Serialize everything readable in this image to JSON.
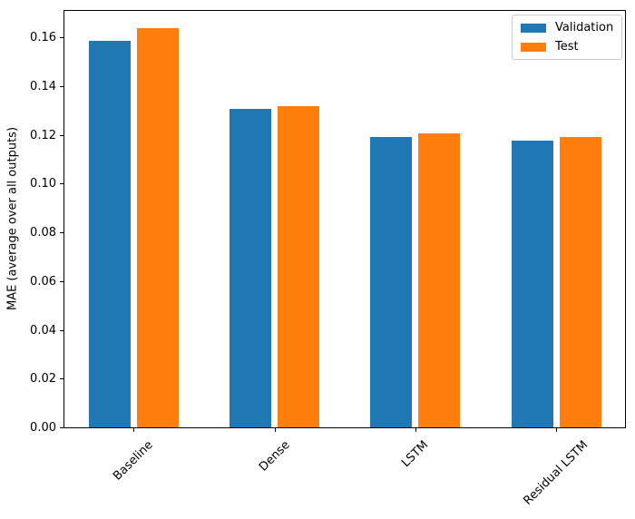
{
  "chart_data": {
    "type": "bar",
    "title": "",
    "xlabel": "",
    "ylabel": "MAE (average over all outputs)",
    "categories": [
      "Baseline",
      "Dense",
      "LSTM",
      "Residual LSTM"
    ],
    "series": [
      {
        "name": "Validation",
        "color": "#1f77b4",
        "values": [
          0.159,
          0.131,
          0.1195,
          0.118
        ]
      },
      {
        "name": "Test",
        "color": "#ff7f0e",
        "values": [
          0.164,
          0.132,
          0.121,
          0.1195
        ]
      }
    ],
    "ylim": [
      0,
      0.1716
    ],
    "y_ticks": [
      0,
      0.02,
      0.04,
      0.06,
      0.08,
      0.1,
      0.12,
      0.14,
      0.16
    ],
    "y_tick_labels": [
      "0.00",
      "0.02",
      "0.04",
      "0.06",
      "0.08",
      "0.10",
      "0.12",
      "0.14",
      "0.16"
    ],
    "x_tick_rotation_deg": 45,
    "grid": false,
    "legend_position": "upper right"
  }
}
